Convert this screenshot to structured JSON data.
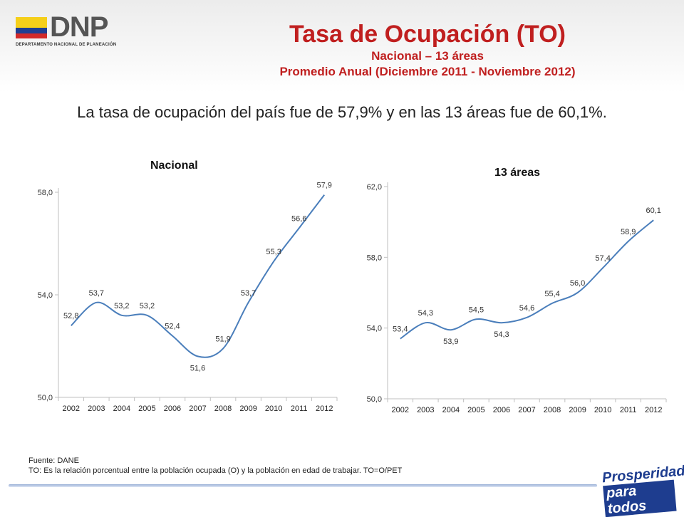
{
  "header": {
    "logo_text": "DNP",
    "logo_subtitle": "DEPARTAMENTO NACIONAL DE PLANEACIÓN",
    "title": "Tasa de Ocupación (TO)",
    "subtitle_1": "Nacional – 13 áreas",
    "subtitle_2": "Promedio Anual (Diciembre  2011 - Noviembre 2012)"
  },
  "summary": "La tasa de ocupación del país fue de 57,9% y en las 13 áreas fue de 60,1%.",
  "footer": {
    "source": "Fuente: DANE",
    "note": "TO: Es la relación porcentual entre la población ocupada (O) y la población  en edad de trabajar. TO=O/PET",
    "brand_line1": "Prosperidad",
    "brand_line2": "para todos"
  },
  "colors": {
    "title_red": "#c01f1f",
    "line_blue": "#4a7ebb",
    "flag_yellow": "#f5cf1a",
    "flag_blue": "#1f3f93",
    "flag_red": "#d22a2a"
  },
  "chart_data": [
    {
      "type": "line",
      "title": "Nacional",
      "categories": [
        "2002",
        "2003",
        "2004",
        "2005",
        "2006",
        "2007",
        "2008",
        "2009",
        "2010",
        "2011",
        "2012"
      ],
      "series": [
        {
          "values": [
            52.8,
            53.7,
            53.2,
            53.2,
            52.4,
            51.6,
            51.9,
            53.7,
            55.3,
            56.6,
            57.9
          ],
          "labels": [
            "52,8",
            "53,7",
            "53,2",
            "53,2",
            "52,4",
            "51,6",
            "51,9",
            "53,7",
            "55,3",
            "56,6",
            "57,9"
          ]
        }
      ],
      "ylim": [
        50,
        58
      ],
      "yticks": [
        50,
        54,
        58
      ],
      "ytick_labels": [
        "50,0",
        "54,0",
        "58,0"
      ],
      "grid": false
    },
    {
      "type": "line",
      "title": "13 áreas",
      "categories": [
        "2002",
        "2003",
        "2004",
        "2005",
        "2006",
        "2007",
        "2008",
        "2009",
        "2010",
        "2011",
        "2012"
      ],
      "series": [
        {
          "values": [
            53.4,
            54.3,
            53.9,
            54.5,
            54.3,
            54.6,
            55.4,
            56.0,
            57.4,
            58.9,
            60.1
          ],
          "labels": [
            "53,4",
            "54,3",
            "53,9",
            "54,5",
            "54,3",
            "54,6",
            "55,4",
            "56,0",
            "57,4",
            "58,9",
            "60,1"
          ]
        }
      ],
      "ylim": [
        50,
        62
      ],
      "yticks": [
        50,
        54,
        58,
        62
      ],
      "ytick_labels": [
        "50,0",
        "54,0",
        "58,0",
        "62,0"
      ],
      "grid": false
    }
  ]
}
